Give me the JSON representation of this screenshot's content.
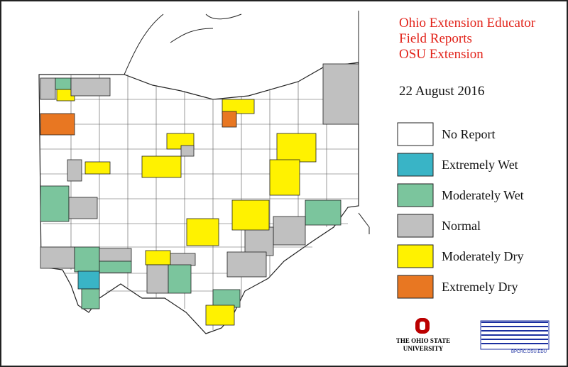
{
  "title": [
    "Ohio Extension Educator",
    "Field Reports",
    "OSU Extension"
  ],
  "date": "22 August 2016",
  "legend": [
    {
      "label": "No Report",
      "color": "#ffffff"
    },
    {
      "label": "Extremely Wet",
      "color": "#39b4c6"
    },
    {
      "label": "Moderately Wet",
      "color": "#7bc59d"
    },
    {
      "label": "Normal",
      "color": "#c0c0c0"
    },
    {
      "label": "Moderately Dry",
      "color": "#fff200"
    },
    {
      "label": "Extremely Dry",
      "color": "#e87722"
    }
  ],
  "logos": {
    "osu": [
      "THE OHIO STATE",
      "UNIVERSITY"
    ],
    "bpcrc": "BPCRC.OSU.EDU"
  }
}
